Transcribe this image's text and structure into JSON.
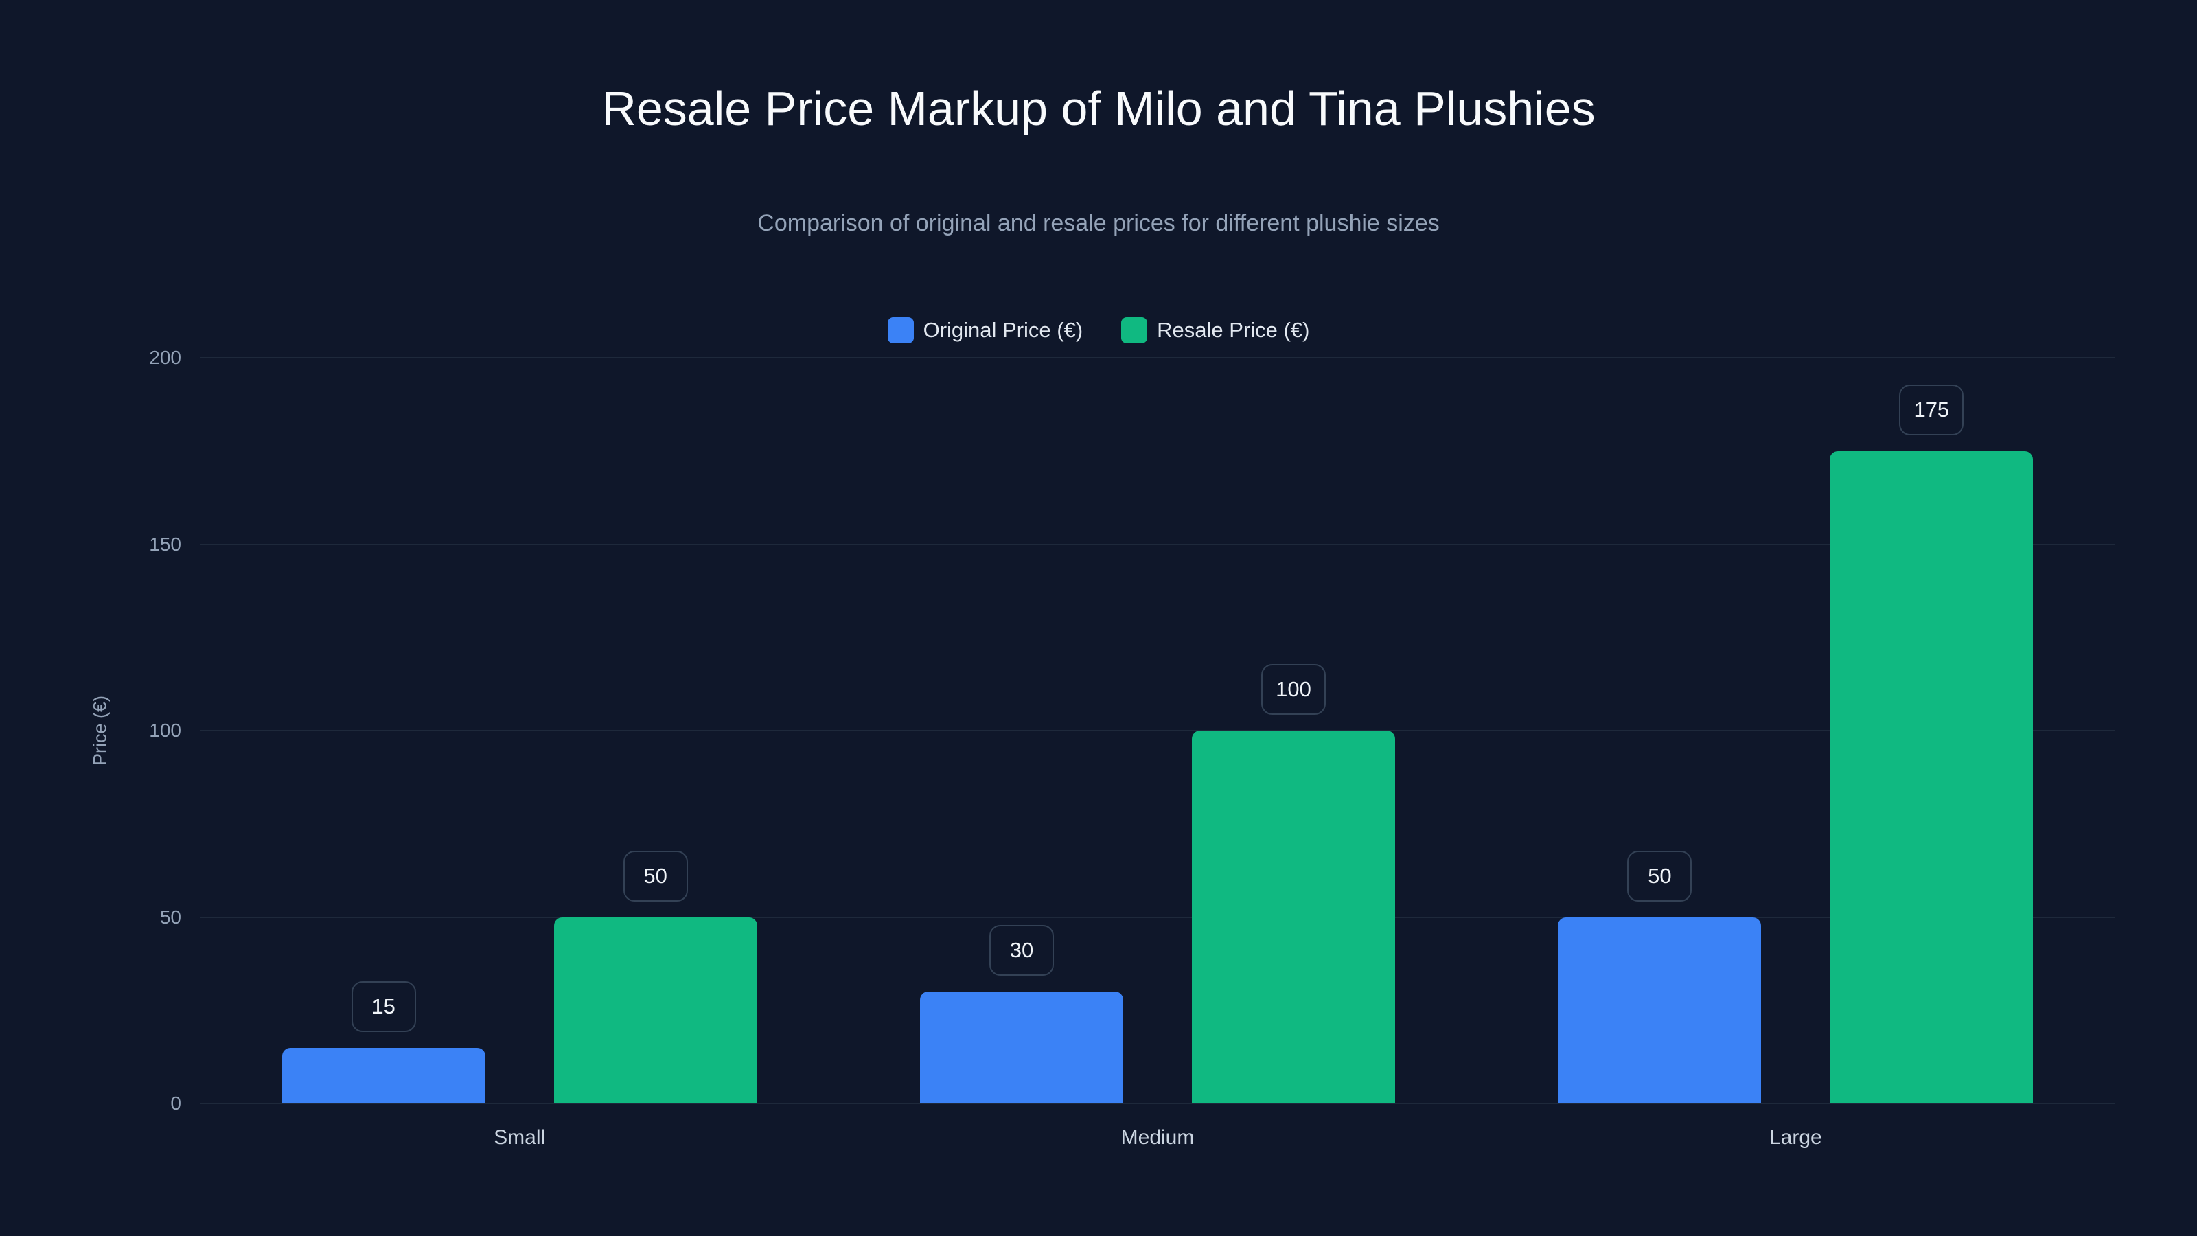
{
  "title": "Resale Price Markup of Milo and Tina Plushies",
  "subtitle": "Comparison of original and resale prices for different plushie sizes",
  "legend": [
    {
      "label": "Original Price (€)",
      "color": "#3b82f6"
    },
    {
      "label": "Resale Price (€)",
      "color": "#10b981"
    }
  ],
  "y_axis": {
    "label": "Price (€)",
    "ticks": [
      "0",
      "50",
      "100",
      "150",
      "200"
    ]
  },
  "x_axis": {
    "ticks": [
      "Small",
      "Medium",
      "Large"
    ]
  },
  "chart_data": {
    "type": "bar",
    "title": "Resale Price Markup of Milo and Tina Plushies",
    "subtitle": "Comparison of original and resale prices for different plushie sizes",
    "categories": [
      "Small",
      "Medium",
      "Large"
    ],
    "series": [
      {
        "name": "Original Price (€)",
        "color": "#3b82f6",
        "values": [
          15,
          30,
          50
        ]
      },
      {
        "name": "Resale Price (€)",
        "color": "#10b981",
        "values": [
          50,
          100,
          175
        ]
      }
    ],
    "xlabel": "",
    "ylabel": "Price (€)",
    "ylim": [
      0,
      200
    ],
    "yticks": [
      0,
      50,
      100,
      150,
      200
    ],
    "grid": true,
    "legend_position": "top-center",
    "data_labels": true
  }
}
